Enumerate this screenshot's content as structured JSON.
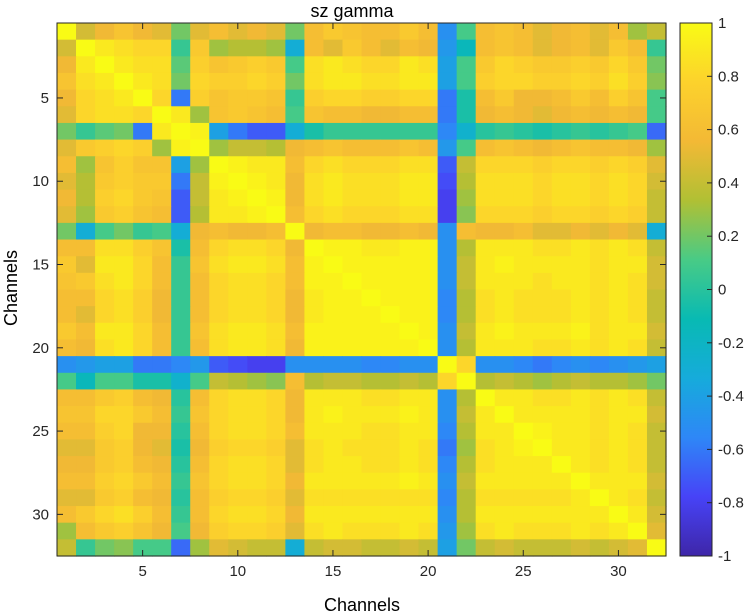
{
  "chart_data": {
    "type": "heatmap",
    "title": "sz gamma",
    "xlabel": "Channels",
    "ylabel": "Channels",
    "n_channels": 32,
    "x_ticks": [
      5,
      10,
      15,
      20,
      25,
      30
    ],
    "y_ticks": [
      5,
      10,
      15,
      20,
      25,
      30
    ],
    "x_tick_labels": [
      "5",
      "10",
      "15",
      "20",
      "25",
      "30"
    ],
    "y_tick_labels": [
      "5",
      "10",
      "15",
      "20",
      "25",
      "30"
    ],
    "clim": [
      -1,
      1
    ],
    "colorbar_ticks": [
      1,
      0.8,
      0.6,
      0.4,
      0.2,
      0,
      -0.2,
      -0.4,
      -0.6,
      -0.8,
      -1
    ],
    "colorbar_tick_labels": [
      "1",
      "0.8",
      "0.6",
      "0.4",
      "0.2",
      "0",
      "-0.2",
      "-0.4",
      "-0.6",
      "-0.8",
      "-1"
    ],
    "colormap": "parula",
    "colormap_stops": [
      "#3e26a8",
      "#4743f7",
      "#2e87f7",
      "#16abdb",
      "#08bab3",
      "#48cb86",
      "#b0c034",
      "#f3b935",
      "#fcd22c",
      "#f9fb15"
    ],
    "values": [
      [
        1,
        0.45,
        0.55,
        0.65,
        0.55,
        0.5,
        0.2,
        0.5,
        0.6,
        0.5,
        0.55,
        0.5,
        0.2,
        0.6,
        0.7,
        0.65,
        0.6,
        0.6,
        0.7,
        0.6,
        -0.5,
        0.1,
        0.6,
        0.65,
        0.6,
        0.5,
        0.55,
        0.6,
        0.5,
        0.6,
        0.3,
        0.4
      ],
      [
        0.45,
        1,
        0.9,
        0.85,
        0.8,
        0.8,
        0.05,
        0.7,
        0.3,
        0.35,
        0.35,
        0.3,
        -0.3,
        0.6,
        0.5,
        0.7,
        0.6,
        0.5,
        0.6,
        0.55,
        -0.45,
        -0.15,
        0.6,
        0.65,
        0.6,
        0.5,
        0.55,
        0.6,
        0.5,
        0.7,
        0.6,
        0.05
      ],
      [
        0.55,
        0.9,
        1,
        0.9,
        0.85,
        0.85,
        0.15,
        0.75,
        0.65,
        0.7,
        0.75,
        0.7,
        0.1,
        0.85,
        0.9,
        0.85,
        0.8,
        0.8,
        0.9,
        0.85,
        -0.4,
        0.1,
        0.7,
        0.8,
        0.75,
        0.7,
        0.7,
        0.75,
        0.7,
        0.8,
        0.7,
        0.2
      ],
      [
        0.65,
        0.85,
        0.9,
        1,
        0.9,
        0.85,
        0.2,
        0.8,
        0.75,
        0.75,
        0.8,
        0.75,
        0.2,
        0.85,
        0.9,
        0.9,
        0.85,
        0.85,
        0.9,
        0.9,
        -0.4,
        0.1,
        0.75,
        0.8,
        0.8,
        0.75,
        0.75,
        0.8,
        0.75,
        0.85,
        0.75,
        0.25
      ],
      [
        0.55,
        0.8,
        0.85,
        0.9,
        1,
        0.8,
        -0.6,
        0.75,
        0.65,
        0.7,
        0.7,
        0.65,
        0.05,
        0.75,
        0.8,
        0.8,
        0.75,
        0.75,
        0.8,
        0.8,
        -0.6,
        -0.05,
        0.6,
        0.7,
        0.55,
        0.55,
        0.6,
        0.7,
        0.6,
        0.75,
        0.65,
        0.1
      ],
      [
        0.5,
        0.8,
        0.85,
        0.85,
        0.8,
        1,
        0.9,
        0.3,
        0.65,
        0.7,
        0.65,
        0.6,
        0.1,
        0.65,
        0.6,
        0.6,
        0.55,
        0.55,
        0.6,
        0.6,
        -0.6,
        -0.05,
        0.55,
        0.6,
        0.55,
        0.5,
        0.55,
        0.6,
        0.55,
        0.6,
        0.55,
        0.1
      ],
      [
        0.2,
        0.05,
        0.15,
        0.2,
        -0.6,
        0.9,
        1,
        0.95,
        -0.4,
        -0.6,
        -0.7,
        -0.7,
        -0.3,
        -0.05,
        0.05,
        0.05,
        0.05,
        0.05,
        0.05,
        0.05,
        -0.55,
        -0.25,
        0,
        0.05,
        0,
        -0.05,
        0,
        0.05,
        0,
        0.05,
        0.1,
        -0.65
      ],
      [
        0.5,
        0.7,
        0.75,
        0.8,
        0.75,
        0.3,
        0.95,
        1,
        0.3,
        0.4,
        0.4,
        0.35,
        0.55,
        0.6,
        0.65,
        0.6,
        0.6,
        0.6,
        0.65,
        0.6,
        -0.45,
        0.1,
        0.6,
        0.65,
        0.6,
        0.55,
        0.6,
        0.65,
        0.6,
        0.6,
        0.55,
        0.3
      ],
      [
        0.6,
        0.3,
        0.65,
        0.75,
        0.65,
        0.65,
        -0.4,
        0.3,
        1,
        0.95,
        0.9,
        0.9,
        0.6,
        0.8,
        0.85,
        0.8,
        0.8,
        0.8,
        0.85,
        0.85,
        -0.7,
        0.4,
        0.8,
        0.8,
        0.8,
        0.75,
        0.8,
        0.8,
        0.75,
        0.8,
        0.75,
        0.5
      ],
      [
        0.5,
        0.35,
        0.7,
        0.75,
        0.7,
        0.7,
        -0.6,
        0.4,
        0.95,
        1,
        0.95,
        0.9,
        0.55,
        0.85,
        0.9,
        0.85,
        0.85,
        0.85,
        0.9,
        0.9,
        -0.75,
        0.35,
        0.85,
        0.85,
        0.85,
        0.8,
        0.85,
        0.85,
        0.8,
        0.85,
        0.8,
        0.45
      ],
      [
        0.55,
        0.35,
        0.75,
        0.8,
        0.7,
        0.65,
        -0.7,
        0.4,
        0.9,
        0.95,
        1,
        0.95,
        0.55,
        0.85,
        0.9,
        0.85,
        0.85,
        0.85,
        0.9,
        0.9,
        -0.8,
        0.3,
        0.85,
        0.85,
        0.85,
        0.8,
        0.85,
        0.85,
        0.8,
        0.85,
        0.8,
        0.4
      ],
      [
        0.5,
        0.3,
        0.7,
        0.75,
        0.65,
        0.6,
        -0.7,
        0.35,
        0.9,
        0.9,
        0.95,
        1,
        0.6,
        0.8,
        0.85,
        0.8,
        0.8,
        0.8,
        0.85,
        0.85,
        -0.8,
        0.25,
        0.8,
        0.8,
        0.8,
        0.75,
        0.8,
        0.8,
        0.75,
        0.8,
        0.75,
        0.4
      ],
      [
        0.2,
        -0.3,
        0.1,
        0.2,
        0.05,
        0.1,
        -0.3,
        0.55,
        0.6,
        0.55,
        0.55,
        0.6,
        1,
        0.55,
        0.6,
        0.6,
        0.55,
        0.55,
        0.6,
        0.55,
        -0.5,
        0.6,
        0.55,
        0.55,
        0.6,
        0.5,
        0.5,
        0.55,
        0.5,
        0.55,
        0.5,
        -0.3
      ],
      [
        0.6,
        0.6,
        0.85,
        0.85,
        0.75,
        0.65,
        -0.05,
        0.6,
        0.8,
        0.85,
        0.85,
        0.8,
        0.55,
        1,
        0.95,
        0.95,
        0.9,
        0.9,
        0.95,
        0.95,
        -0.5,
        0.35,
        0.9,
        0.9,
        0.9,
        0.85,
        0.85,
        0.9,
        0.85,
        0.9,
        0.85,
        0.4
      ],
      [
        0.7,
        0.5,
        0.9,
        0.9,
        0.8,
        0.6,
        0.05,
        0.65,
        0.85,
        0.9,
        0.9,
        0.85,
        0.6,
        0.95,
        1,
        0.95,
        0.95,
        0.95,
        0.95,
        0.95,
        -0.5,
        0.4,
        0.9,
        0.95,
        0.9,
        0.9,
        0.9,
        0.9,
        0.85,
        0.9,
        0.9,
        0.45
      ],
      [
        0.65,
        0.7,
        0.85,
        0.9,
        0.8,
        0.6,
        0.05,
        0.6,
        0.8,
        0.85,
        0.85,
        0.8,
        0.6,
        0.95,
        0.95,
        1,
        0.95,
        0.95,
        0.95,
        0.95,
        -0.5,
        0.4,
        0.9,
        0.9,
        0.9,
        0.85,
        0.9,
        0.9,
        0.85,
        0.9,
        0.85,
        0.45
      ],
      [
        0.6,
        0.6,
        0.8,
        0.85,
        0.75,
        0.55,
        0.05,
        0.6,
        0.8,
        0.85,
        0.85,
        0.8,
        0.55,
        0.9,
        0.95,
        0.95,
        1,
        0.95,
        0.95,
        0.95,
        -0.55,
        0.35,
        0.85,
        0.9,
        0.85,
        0.85,
        0.85,
        0.9,
        0.85,
        0.9,
        0.85,
        0.4
      ],
      [
        0.6,
        0.5,
        0.8,
        0.85,
        0.75,
        0.55,
        0.05,
        0.6,
        0.8,
        0.85,
        0.85,
        0.8,
        0.55,
        0.9,
        0.95,
        0.95,
        0.95,
        1,
        0.95,
        0.95,
        -0.55,
        0.35,
        0.85,
        0.9,
        0.85,
        0.85,
        0.85,
        0.9,
        0.85,
        0.9,
        0.85,
        0.4
      ],
      [
        0.7,
        0.6,
        0.9,
        0.9,
        0.8,
        0.6,
        0.05,
        0.65,
        0.85,
        0.9,
        0.9,
        0.85,
        0.6,
        0.95,
        0.95,
        0.95,
        0.95,
        0.95,
        1,
        0.95,
        -0.5,
        0.4,
        0.9,
        0.95,
        0.9,
        0.9,
        0.9,
        0.95,
        0.85,
        0.9,
        0.9,
        0.45
      ],
      [
        0.6,
        0.55,
        0.85,
        0.9,
        0.8,
        0.6,
        0.05,
        0.6,
        0.85,
        0.9,
        0.9,
        0.85,
        0.55,
        0.95,
        0.95,
        0.95,
        0.95,
        0.95,
        0.95,
        1,
        -0.5,
        0.35,
        0.9,
        0.9,
        0.9,
        0.85,
        0.85,
        0.9,
        0.85,
        0.9,
        0.85,
        0.4
      ],
      [
        -0.5,
        -0.45,
        -0.4,
        -0.4,
        -0.6,
        -0.6,
        -0.55,
        -0.45,
        -0.7,
        -0.75,
        -0.8,
        -0.8,
        -0.5,
        -0.5,
        -0.5,
        -0.5,
        -0.55,
        -0.55,
        -0.5,
        -0.5,
        1,
        0.8,
        -0.5,
        -0.5,
        -0.55,
        -0.6,
        -0.55,
        -0.5,
        -0.55,
        -0.5,
        -0.45,
        -0.4
      ],
      [
        0.1,
        -0.15,
        0.1,
        0.1,
        -0.05,
        -0.05,
        -0.25,
        0.1,
        0.4,
        0.35,
        0.3,
        0.25,
        0.6,
        0.35,
        0.4,
        0.4,
        0.35,
        0.35,
        0.4,
        0.35,
        0.8,
        1,
        0.35,
        0.4,
        0.35,
        0.3,
        0.35,
        0.4,
        0.35,
        0.35,
        0.3,
        0.2
      ],
      [
        0.6,
        0.6,
        0.7,
        0.75,
        0.6,
        0.55,
        0,
        0.6,
        0.8,
        0.85,
        0.85,
        0.8,
        0.55,
        0.9,
        0.9,
        0.9,
        0.85,
        0.85,
        0.9,
        0.9,
        -0.5,
        0.35,
        1,
        0.9,
        0.9,
        0.85,
        0.85,
        0.9,
        0.85,
        0.9,
        0.85,
        0.4
      ],
      [
        0.65,
        0.65,
        0.8,
        0.8,
        0.7,
        0.6,
        0.05,
        0.65,
        0.8,
        0.85,
        0.85,
        0.8,
        0.55,
        0.9,
        0.95,
        0.9,
        0.9,
        0.9,
        0.95,
        0.9,
        -0.5,
        0.4,
        0.9,
        1,
        0.9,
        0.9,
        0.9,
        0.9,
        0.85,
        0.9,
        0.9,
        0.45
      ],
      [
        0.6,
        0.6,
        0.75,
        0.8,
        0.55,
        0.55,
        0,
        0.6,
        0.8,
        0.85,
        0.85,
        0.8,
        0.6,
        0.9,
        0.9,
        0.9,
        0.85,
        0.85,
        0.9,
        0.9,
        -0.55,
        0.35,
        0.9,
        0.9,
        1,
        0.95,
        0.9,
        0.9,
        0.85,
        0.9,
        0.85,
        0.4
      ],
      [
        0.5,
        0.5,
        0.7,
        0.75,
        0.55,
        0.5,
        -0.05,
        0.55,
        0.75,
        0.8,
        0.8,
        0.75,
        0.5,
        0.85,
        0.9,
        0.85,
        0.85,
        0.85,
        0.9,
        0.85,
        -0.6,
        0.3,
        0.85,
        0.9,
        0.95,
        1,
        0.9,
        0.9,
        0.85,
        0.9,
        0.85,
        0.4
      ],
      [
        0.55,
        0.55,
        0.7,
        0.75,
        0.6,
        0.55,
        0,
        0.6,
        0.8,
        0.85,
        0.85,
        0.8,
        0.5,
        0.85,
        0.9,
        0.9,
        0.85,
        0.85,
        0.9,
        0.85,
        -0.55,
        0.35,
        0.85,
        0.9,
        0.9,
        0.9,
        1,
        0.9,
        0.85,
        0.9,
        0.85,
        0.4
      ],
      [
        0.6,
        0.6,
        0.75,
        0.8,
        0.7,
        0.6,
        0.05,
        0.65,
        0.8,
        0.85,
        0.85,
        0.8,
        0.55,
        0.9,
        0.9,
        0.9,
        0.9,
        0.9,
        0.95,
        0.9,
        -0.5,
        0.4,
        0.9,
        0.9,
        0.9,
        0.9,
        0.9,
        1,
        0.9,
        0.9,
        0.9,
        0.45
      ],
      [
        0.5,
        0.5,
        0.7,
        0.75,
        0.6,
        0.55,
        0,
        0.6,
        0.75,
        0.8,
        0.8,
        0.75,
        0.5,
        0.85,
        0.85,
        0.85,
        0.85,
        0.85,
        0.85,
        0.85,
        -0.55,
        0.35,
        0.85,
        0.85,
        0.85,
        0.85,
        0.85,
        0.9,
        1,
        0.9,
        0.85,
        0.4
      ],
      [
        0.6,
        0.7,
        0.8,
        0.85,
        0.75,
        0.6,
        0.05,
        0.6,
        0.8,
        0.85,
        0.85,
        0.8,
        0.55,
        0.9,
        0.9,
        0.9,
        0.9,
        0.9,
        0.9,
        0.9,
        -0.5,
        0.35,
        0.9,
        0.9,
        0.9,
        0.9,
        0.9,
        0.9,
        0.9,
        1,
        0.9,
        0.45
      ],
      [
        0.3,
        0.6,
        0.7,
        0.75,
        0.65,
        0.55,
        0.1,
        0.55,
        0.75,
        0.8,
        0.8,
        0.75,
        0.5,
        0.85,
        0.9,
        0.85,
        0.85,
        0.85,
        0.9,
        0.85,
        -0.45,
        0.3,
        0.85,
        0.9,
        0.85,
        0.85,
        0.85,
        0.9,
        0.85,
        0.9,
        1,
        0.5
      ],
      [
        0.4,
        0.05,
        0.2,
        0.25,
        0.1,
        0.1,
        -0.65,
        0.3,
        0.5,
        0.45,
        0.4,
        0.4,
        -0.3,
        0.4,
        0.45,
        0.45,
        0.4,
        0.4,
        0.45,
        0.4,
        -0.4,
        0.2,
        0.4,
        0.45,
        0.4,
        0.4,
        0.4,
        0.45,
        0.4,
        0.45,
        0.5,
        1
      ]
    ]
  }
}
